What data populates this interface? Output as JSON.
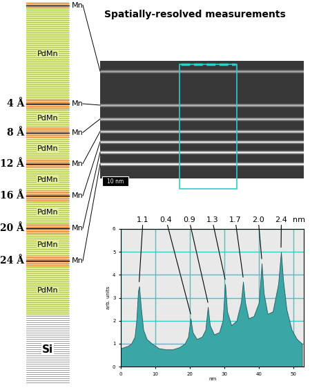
{
  "title": "Spatially-resolved measurements",
  "layer_stack": {
    "layers": [
      "Mn",
      "PdMn",
      "Mn",
      "PdMn",
      "Mn",
      "PdMn",
      "Mn",
      "PdMn",
      "Mn",
      "PdMn",
      "Mn",
      "PdMn",
      "Mn",
      "PdMn",
      "Si"
    ],
    "thickness_labels": [
      "4 Å",
      "8 Å",
      "12 Å",
      "16 Å",
      "20 Å",
      "24 Å"
    ]
  },
  "image": {
    "scale_bar": "10 nm"
  },
  "chart_data": {
    "type": "area",
    "x": [
      0,
      1,
      2,
      3,
      4,
      4.5,
      5,
      5.3,
      5.8,
      6.5,
      7.5,
      9,
      11,
      13,
      15,
      17,
      18.5,
      19.5,
      20.2,
      20.8,
      22,
      23.5,
      24.5,
      25.2,
      25.8,
      27,
      28.5,
      29.5,
      30.2,
      30.8,
      32,
      33.5,
      34.8,
      35.4,
      36,
      37,
      38.5,
      40,
      40.8,
      41.4,
      42.5,
      44,
      45.6,
      46.4,
      47,
      48,
      49.5,
      51,
      52.5
    ],
    "values": [
      0.8,
      0.85,
      0.9,
      1.0,
      1.3,
      2.0,
      3.3,
      3.5,
      2.6,
      1.6,
      1.2,
      1.0,
      0.8,
      0.75,
      0.75,
      0.85,
      1.0,
      1.3,
      2.1,
      1.5,
      1.2,
      1.3,
      1.6,
      2.6,
      1.8,
      1.4,
      1.5,
      2.0,
      3.6,
      2.4,
      1.8,
      2.0,
      2.8,
      3.7,
      2.8,
      2.1,
      2.2,
      2.8,
      4.5,
      3.2,
      2.3,
      2.4,
      3.6,
      5.0,
      3.8,
      2.5,
      1.6,
      1.2,
      1.0
    ],
    "xlim": [
      0,
      53
    ],
    "ylim": [
      0,
      6
    ],
    "xticks": [
      0,
      10,
      20,
      30,
      40,
      50
    ],
    "yticks": [
      0,
      1,
      2,
      3,
      4,
      5,
      6
    ],
    "x_label": "nm",
    "y_label": "arb. units",
    "grid": true,
    "color": "#3ba6a6",
    "annotations": [
      {
        "text": "1.1",
        "x": 5.3,
        "y": 3.5
      },
      {
        "text": "0.4",
        "x": 20.2,
        "y": 2.1
      },
      {
        "text": "0.9",
        "x": 25.2,
        "y": 2.6
      },
      {
        "text": "1.3",
        "x": 30.2,
        "y": 3.6
      },
      {
        "text": "1.7",
        "x": 35.4,
        "y": 3.7
      },
      {
        "text": "2.0",
        "x": 40.8,
        "y": 4.5
      },
      {
        "text": "2.4",
        "x": 46.4,
        "y": 5.0
      }
    ],
    "annotation_unit": "nm"
  }
}
